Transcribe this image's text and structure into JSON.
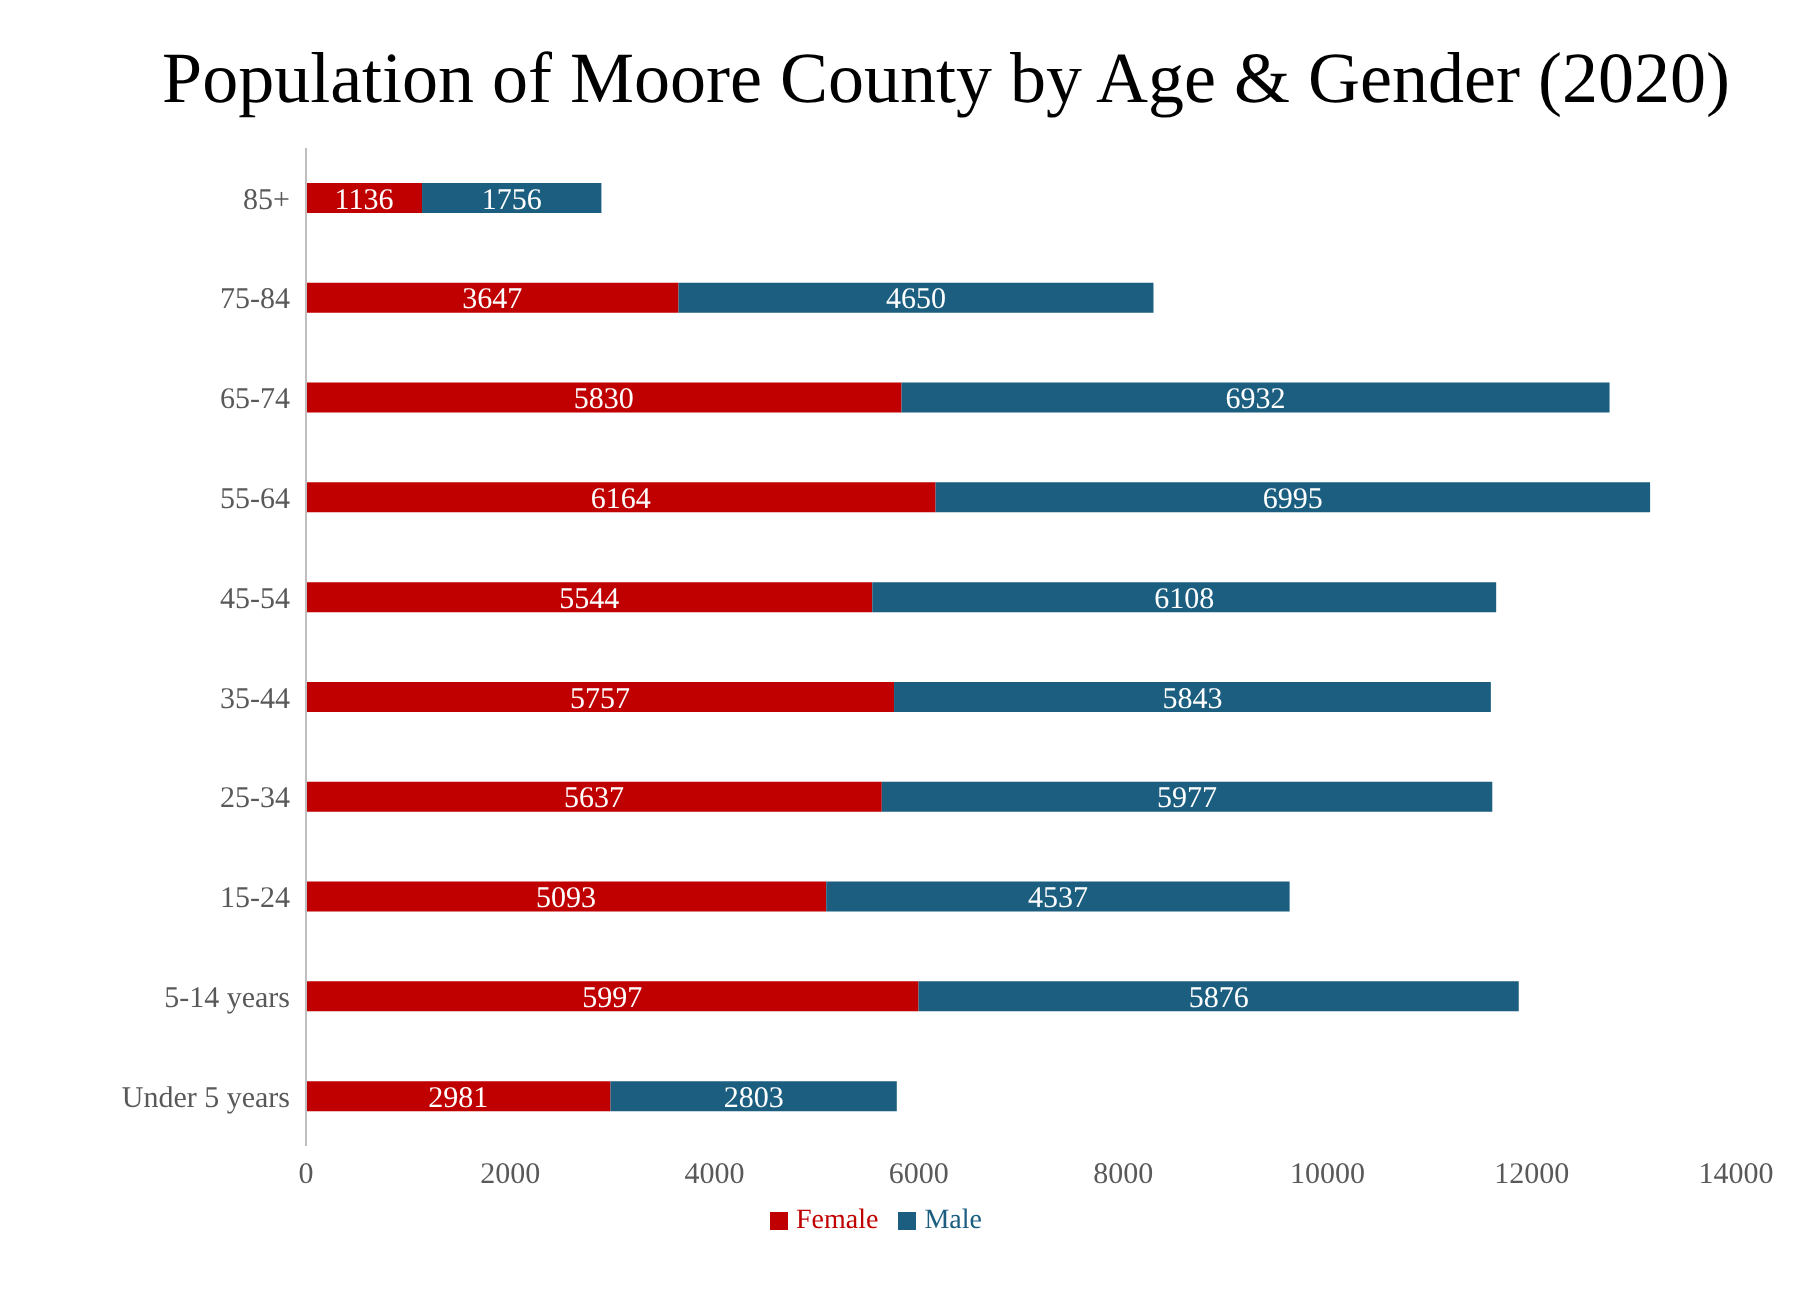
{
  "chart_data": {
    "type": "bar",
    "orientation": "horizontal",
    "stacked": true,
    "title": "Population of Moore County by Age & Gender (2020)",
    "categories": [
      "85+",
      "75-84",
      "65-74",
      "55-64",
      "45-54",
      "35-44",
      "25-34",
      "15-24",
      "5-14 years",
      "Under 5 years"
    ],
    "series": [
      {
        "name": "Female",
        "color": "#c00000",
        "values": [
          1136,
          3647,
          5830,
          6164,
          5544,
          5757,
          5637,
          5093,
          5997,
          2981
        ]
      },
      {
        "name": "Male",
        "color": "#1b5e80",
        "values": [
          1756,
          4650,
          6932,
          6995,
          6108,
          5843,
          5977,
          4537,
          5876,
          2803
        ]
      }
    ],
    "xlim": [
      0,
      14000
    ],
    "xticks": [
      0,
      2000,
      4000,
      6000,
      8000,
      10000,
      12000,
      14000
    ],
    "data_labels": true,
    "legend": "bottom",
    "grid": false
  }
}
